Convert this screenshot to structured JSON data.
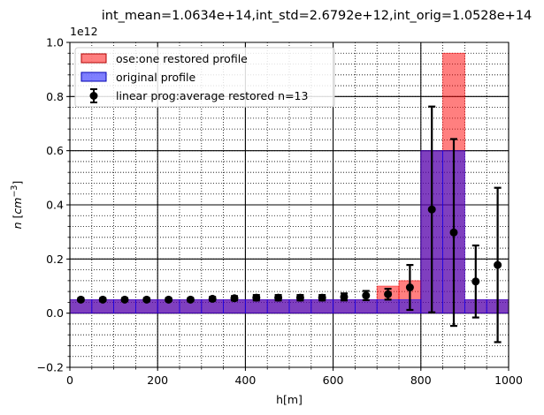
{
  "chart_data": {
    "type": "bar",
    "title": "int_mean=1.0634e+14,int_std=2.6792e+12,int_orig=1.0528e+14",
    "xlabel": "h[m]",
    "ylabel": "n [cm⁻³]",
    "offset_text": "1e12",
    "xlim": [
      0,
      1000
    ],
    "ylim": [
      -0.2,
      1.0
    ],
    "y_scale": 1000000000000.0,
    "x_ticks": [
      0,
      200,
      400,
      600,
      800,
      1000
    ],
    "x_tick_labels": [
      "0",
      "200",
      "400",
      "600",
      "800",
      "1000"
    ],
    "y_ticks": [
      -0.2,
      0.0,
      0.2,
      0.4,
      0.6,
      0.8,
      1.0
    ],
    "y_tick_labels": [
      "−0.2",
      "0.0",
      "0.2",
      "0.4",
      "0.6",
      "0.8",
      "1.0"
    ],
    "grid": true,
    "legend_position": "top-left",
    "bin_edges": [
      0,
      50,
      100,
      150,
      200,
      250,
      300,
      350,
      400,
      450,
      500,
      550,
      600,
      650,
      700,
      750,
      800,
      850,
      900,
      950,
      1000
    ],
    "series": [
      {
        "name": "ose:one restored profile",
        "kind": "bar",
        "color": "#ff0000",
        "values": [
          0.05,
          0.05,
          0.05,
          0.05,
          0.05,
          0.05,
          0.05,
          0.05,
          0.05,
          0.05,
          0.05,
          0.05,
          0.05,
          0.05,
          0.1,
          0.12,
          0.6,
          0.96,
          0.05,
          0.05
        ]
      },
      {
        "name": "original profile",
        "kind": "bar",
        "color": "#0000ff",
        "values": [
          0.05,
          0.05,
          0.05,
          0.05,
          0.05,
          0.05,
          0.05,
          0.05,
          0.05,
          0.05,
          0.05,
          0.05,
          0.05,
          0.05,
          0.05,
          0.05,
          0.6,
          0.6,
          0.05,
          0.05
        ]
      },
      {
        "name": "linear prog:average restored n=13",
        "kind": "errorbar",
        "color": "#000000",
        "x": [
          25,
          75,
          125,
          175,
          225,
          275,
          325,
          375,
          425,
          475,
          525,
          575,
          625,
          675,
          725,
          775,
          825,
          875,
          925,
          975
        ],
        "values": [
          0.05,
          0.05,
          0.05,
          0.05,
          0.05,
          0.05,
          0.053,
          0.055,
          0.057,
          0.057,
          0.057,
          0.057,
          0.06,
          0.065,
          0.07,
          0.095,
          0.383,
          0.298,
          0.117,
          0.178
        ],
        "errors": [
          0.005,
          0.005,
          0.005,
          0.005,
          0.005,
          0.005,
          0.007,
          0.008,
          0.01,
          0.01,
          0.01,
          0.01,
          0.013,
          0.017,
          0.02,
          0.083,
          0.38,
          0.345,
          0.133,
          0.285
        ]
      }
    ]
  }
}
